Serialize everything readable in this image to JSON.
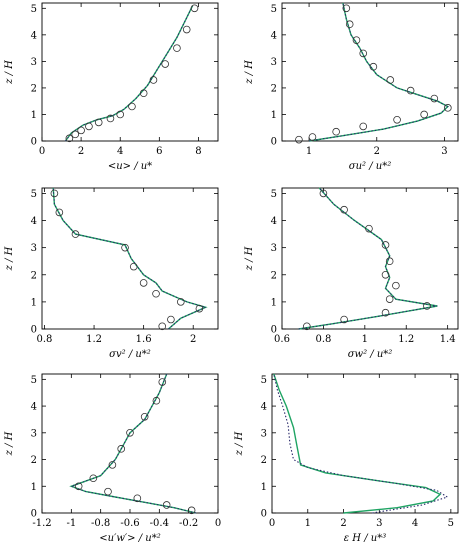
{
  "colors": {
    "model": "#1fa463",
    "reference": "#2a2a6a",
    "markers": "#333333",
    "axes": "#000000"
  },
  "figure": {
    "panel_count": 6,
    "layout": "3 rows x 2 columns",
    "ylabel": "z / H"
  },
  "chart_data": [
    {
      "type": "line",
      "panel": "top-left",
      "xlabel": "<u> / u*",
      "ylabel": "z / H",
      "xlim": [
        0,
        9
      ],
      "ylim": [
        0,
        5.2
      ],
      "xticks": [
        0,
        2,
        4,
        6,
        8
      ],
      "yticks": [
        0,
        1,
        2,
        3,
        4,
        5
      ],
      "series": [
        {
          "style": "green-solid",
          "x": [
            1.2,
            1.5,
            2.1,
            2.8,
            3.6,
            4.2,
            4.8,
            5.4,
            5.9,
            6.4,
            6.9,
            7.3,
            7.7
          ],
          "y": [
            0.0,
            0.3,
            0.6,
            0.8,
            0.95,
            1.2,
            1.6,
            2.1,
            2.7,
            3.3,
            3.9,
            4.5,
            5.1
          ]
        },
        {
          "style": "dotted",
          "x": [
            1.2,
            1.5,
            2.1,
            2.8,
            3.6,
            4.2,
            4.8,
            5.4,
            5.9,
            6.4,
            6.9,
            7.3,
            7.7
          ],
          "y": [
            0.0,
            0.3,
            0.6,
            0.8,
            0.95,
            1.2,
            1.6,
            2.1,
            2.7,
            3.3,
            3.9,
            4.5,
            5.1
          ]
        },
        {
          "style": "circles",
          "x": [
            1.4,
            1.7,
            2.0,
            2.4,
            2.9,
            3.5,
            4.0,
            4.6,
            5.2,
            5.7,
            6.3,
            6.9,
            7.4,
            7.8
          ],
          "y": [
            0.1,
            0.25,
            0.4,
            0.55,
            0.7,
            0.85,
            1.0,
            1.3,
            1.8,
            2.3,
            2.9,
            3.5,
            4.2,
            5.0
          ]
        }
      ]
    },
    {
      "type": "line",
      "panel": "top-right",
      "xlabel": "σu² / u*²",
      "ylabel": "z / H",
      "xlim": [
        0.6,
        3.2
      ],
      "ylim": [
        0,
        5.2
      ],
      "xticks": [
        1,
        2,
        3
      ],
      "yticks": [
        0,
        1,
        2,
        3,
        4,
        5
      ],
      "series": [
        {
          "style": "green-solid",
          "x": [
            1.0,
            1.5,
            2.1,
            2.6,
            2.95,
            3.05,
            2.9,
            2.6,
            2.3,
            2.0,
            1.85,
            1.75,
            1.62,
            1.55,
            1.5
          ],
          "y": [
            0.0,
            0.2,
            0.45,
            0.75,
            1.05,
            1.3,
            1.5,
            1.75,
            2.0,
            2.5,
            3.0,
            3.5,
            4.0,
            4.6,
            5.2
          ]
        },
        {
          "style": "dotted",
          "x": [
            1.0,
            1.5,
            2.1,
            2.6,
            2.95,
            3.05,
            2.9,
            2.6,
            2.3,
            2.0,
            1.85,
            1.75,
            1.62,
            1.55,
            1.5
          ],
          "y": [
            0.0,
            0.2,
            0.45,
            0.75,
            1.05,
            1.3,
            1.5,
            1.75,
            2.0,
            2.5,
            3.0,
            3.5,
            4.0,
            4.6,
            5.2
          ]
        },
        {
          "style": "circles",
          "x": [
            0.85,
            1.05,
            1.4,
            1.8,
            2.3,
            2.7,
            3.05,
            2.85,
            2.5,
            2.2,
            1.95,
            1.8,
            1.7,
            1.6,
            1.55
          ],
          "y": [
            0.05,
            0.15,
            0.35,
            0.55,
            0.8,
            1.0,
            1.25,
            1.6,
            1.9,
            2.3,
            2.8,
            3.3,
            3.8,
            4.4,
            5.0
          ]
        }
      ]
    },
    {
      "type": "line",
      "panel": "middle-left",
      "xlabel": "σv² / u*²",
      "ylabel": "z / H",
      "xlim": [
        0.78,
        2.2
      ],
      "ylim": [
        0,
        5.2
      ],
      "xticks": [
        0.8,
        1.2,
        1.6,
        2.0
      ],
      "yticks": [
        0,
        1,
        2,
        3,
        4,
        5
      ],
      "series": [
        {
          "style": "green-solid",
          "x": [
            1.8,
            1.9,
            2.1,
            1.95,
            1.85,
            1.75,
            1.7,
            1.6,
            1.5,
            1.45,
            1.05,
            0.95,
            0.88,
            0.87
          ],
          "y": [
            0.0,
            0.4,
            0.8,
            1.0,
            1.2,
            1.4,
            1.7,
            2.0,
            2.6,
            3.1,
            3.5,
            4.0,
            4.6,
            5.2
          ]
        },
        {
          "style": "dotted",
          "x": [
            1.8,
            1.9,
            2.1,
            1.95,
            1.85,
            1.75,
            1.7,
            1.6,
            1.5,
            1.45,
            1.05,
            0.95,
            0.88,
            0.87
          ],
          "y": [
            0.0,
            0.4,
            0.8,
            1.0,
            1.2,
            1.4,
            1.7,
            2.0,
            2.6,
            3.1,
            3.5,
            4.0,
            4.6,
            5.2
          ]
        },
        {
          "style": "circles",
          "x": [
            1.75,
            1.82,
            2.05,
            1.9,
            1.7,
            1.6,
            1.52,
            1.45,
            1.05,
            0.92,
            0.88
          ],
          "y": [
            0.1,
            0.35,
            0.75,
            1.0,
            1.3,
            1.7,
            2.3,
            3.0,
            3.5,
            4.3,
            5.0
          ]
        }
      ]
    },
    {
      "type": "line",
      "panel": "middle-right",
      "xlabel": "σw² / u*²",
      "ylabel": "z / H",
      "xlim": [
        0.6,
        1.45
      ],
      "ylim": [
        0,
        5.2
      ],
      "xticks": [
        0.6,
        0.8,
        1.0,
        1.2,
        1.4
      ],
      "yticks": [
        0,
        1,
        2,
        3,
        4,
        5
      ],
      "series": [
        {
          "style": "green-solid",
          "x": [
            0.68,
            0.85,
            1.05,
            1.2,
            1.35,
            1.15,
            1.1,
            1.12,
            1.1,
            1.12,
            1.08,
            0.95,
            0.85,
            0.78
          ],
          "y": [
            0.0,
            0.2,
            0.45,
            0.65,
            0.85,
            1.1,
            1.5,
            1.9,
            2.3,
            2.7,
            3.3,
            4.0,
            4.6,
            5.2
          ]
        },
        {
          "style": "dotted",
          "x": [
            0.68,
            0.85,
            1.05,
            1.2,
            1.35,
            1.15,
            1.1,
            1.12,
            1.1,
            1.12,
            1.08,
            0.95,
            0.85,
            0.78
          ],
          "y": [
            0.0,
            0.2,
            0.45,
            0.65,
            0.85,
            1.1,
            1.5,
            1.9,
            2.3,
            2.7,
            3.3,
            4.0,
            4.6,
            5.2
          ]
        },
        {
          "style": "circles",
          "x": [
            0.72,
            0.9,
            1.1,
            1.3,
            1.12,
            1.15,
            1.1,
            1.12,
            1.1,
            1.02,
            0.9,
            0.8
          ],
          "y": [
            0.1,
            0.35,
            0.6,
            0.85,
            1.1,
            1.6,
            2.0,
            2.5,
            3.1,
            3.7,
            4.4,
            5.0
          ]
        }
      ]
    },
    {
      "type": "line",
      "panel": "bottom-left",
      "xlabel": "<u′w′> / u*²",
      "ylabel": "z / H",
      "xlim": [
        -1.2,
        0.0
      ],
      "ylim": [
        0,
        5.2
      ],
      "xticks": [
        -1.2,
        -1.0,
        -0.8,
        -0.6,
        -0.4,
        -0.2,
        0.0
      ],
      "yticks": [
        0,
        1,
        2,
        3,
        4,
        5
      ],
      "series": [
        {
          "style": "green-solid",
          "x": [
            -0.15,
            -0.3,
            -0.5,
            -0.7,
            -0.9,
            -1.0,
            -0.8,
            -0.7,
            -0.65,
            -0.6,
            -0.5,
            -0.45,
            -0.4,
            -0.35
          ],
          "y": [
            0.0,
            0.2,
            0.4,
            0.6,
            0.8,
            1.0,
            1.4,
            2.0,
            2.5,
            3.0,
            3.5,
            4.0,
            4.5,
            5.2
          ]
        },
        {
          "style": "dotted",
          "x": [
            -0.15,
            -0.3,
            -0.5,
            -0.7,
            -0.9,
            -1.0,
            -0.8,
            -0.7,
            -0.65,
            -0.6,
            -0.5,
            -0.45,
            -0.4,
            -0.35
          ],
          "y": [
            0.0,
            0.2,
            0.4,
            0.6,
            0.8,
            1.0,
            1.4,
            2.0,
            2.5,
            3.0,
            3.5,
            4.0,
            4.5,
            5.2
          ]
        },
        {
          "style": "circles",
          "x": [
            -0.18,
            -0.35,
            -0.55,
            -0.75,
            -0.95,
            -0.85,
            -0.72,
            -0.66,
            -0.6,
            -0.5,
            -0.42,
            -0.38
          ],
          "y": [
            0.1,
            0.3,
            0.55,
            0.8,
            1.0,
            1.3,
            1.8,
            2.4,
            3.0,
            3.6,
            4.2,
            4.9
          ]
        }
      ]
    },
    {
      "type": "line",
      "panel": "bottom-right",
      "xlabel": "ε H / u*³",
      "ylabel": "z / H",
      "xlim": [
        0,
        5.2
      ],
      "ylim": [
        0,
        5.2
      ],
      "xticks": [
        0,
        1,
        2,
        3,
        4,
        5
      ],
      "yticks": [
        0,
        1,
        2,
        3,
        4,
        5
      ],
      "series": [
        {
          "style": "green-solid",
          "x": [
            2.0,
            3.5,
            4.5,
            4.7,
            4.3,
            3.0,
            1.5,
            0.8,
            0.7,
            0.6,
            0.4,
            0.2,
            0.05
          ],
          "y": [
            0.0,
            0.2,
            0.45,
            0.7,
            0.95,
            1.2,
            1.5,
            1.8,
            2.5,
            3.2,
            4.0,
            4.6,
            5.2
          ]
        },
        {
          "style": "dotted",
          "x": [
            2.8,
            4.2,
            4.9,
            4.6,
            3.5,
            2.0,
            1.0,
            0.6,
            0.5,
            0.45,
            0.3,
            0.15,
            0.05
          ],
          "y": [
            0.0,
            0.3,
            0.6,
            0.85,
            1.1,
            1.4,
            1.7,
            2.0,
            2.6,
            3.3,
            4.0,
            4.6,
            5.2
          ]
        }
      ]
    }
  ]
}
